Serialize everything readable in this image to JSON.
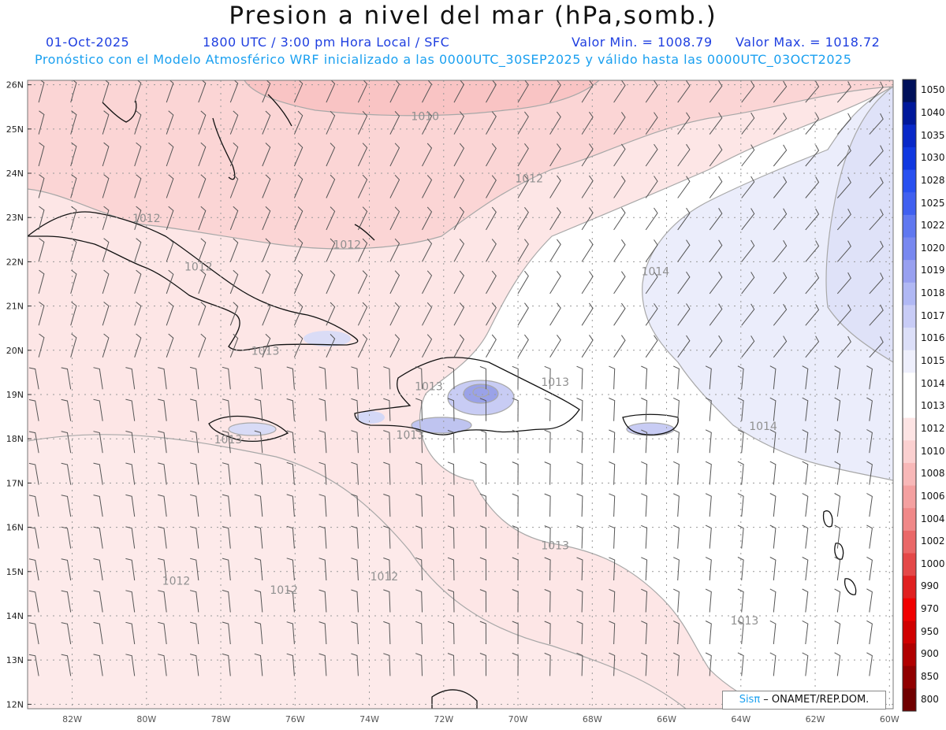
{
  "header": {
    "title": "Presion a nivel del mar (hPa,somb.)",
    "date": "01-Oct-2025",
    "time_info": "1800 UTC / 3:00 pm Hora Local / SFC",
    "valor_min": "Valor Min. = 1008.79",
    "valor_max": "Valor Max. = 1018.72",
    "forecast_info": "Pronóstico con el Modelo Atmosférico WRF inicializado a las 0000UTC_30SEP2025 y válido hasta las  0000UTC_03OCT2025"
  },
  "map": {
    "lat_labels": [
      "26N",
      "25N",
      "24N",
      "23N",
      "22N",
      "21N",
      "20N",
      "19N",
      "18N",
      "17N",
      "16N",
      "15N",
      "14N",
      "13N",
      "12N"
    ],
    "lon_labels": [
      "82W",
      "80W",
      "78W",
      "76W",
      "74W",
      "72W",
      "70W",
      "68W",
      "66W",
      "64W",
      "62W",
      "60W"
    ],
    "contour_labels": [
      {
        "text": "1010",
        "lon": -72.5,
        "lat": 25.2
      },
      {
        "text": "1012",
        "lon": -69.7,
        "lat": 23.8
      },
      {
        "text": "1012",
        "lon": -80.0,
        "lat": 22.9
      },
      {
        "text": "1012",
        "lon": -74.6,
        "lat": 22.3
      },
      {
        "text": "1012",
        "lon": -78.6,
        "lat": 21.8
      },
      {
        "text": "1014",
        "lon": -66.3,
        "lat": 21.7
      },
      {
        "text": "1013",
        "lon": -76.8,
        "lat": 19.9
      },
      {
        "text": "1013",
        "lon": -72.4,
        "lat": 19.1
      },
      {
        "text": "1013",
        "lon": -69.0,
        "lat": 19.2
      },
      {
        "text": "1013",
        "lon": -77.8,
        "lat": 17.9
      },
      {
        "text": "1013",
        "lon": -72.9,
        "lat": 18.0
      },
      {
        "text": "1014",
        "lon": -63.4,
        "lat": 18.2
      },
      {
        "text": "1013",
        "lon": -69.0,
        "lat": 15.5
      },
      {
        "text": "1012",
        "lon": -79.2,
        "lat": 14.7
      },
      {
        "text": "1012",
        "lon": -76.3,
        "lat": 14.5
      },
      {
        "text": "1012",
        "lon": -73.6,
        "lat": 14.8
      },
      {
        "text": "1013",
        "lon": -63.9,
        "lat": 13.8
      }
    ]
  },
  "colorbar": {
    "labels": [
      "1050",
      "1040",
      "1035",
      "1030",
      "1028",
      "1025",
      "1022",
      "1020",
      "1019",
      "1018",
      "1017",
      "1016",
      "1015",
      "1014",
      "1013",
      "1012",
      "1010",
      "1008",
      "1006",
      "1004",
      "1002",
      "1000",
      "990",
      "970",
      "950",
      "900",
      "850",
      "800"
    ],
    "colors": [
      "#00105a",
      "#00189a",
      "#0828c8",
      "#1038e0",
      "#2850f0",
      "#4060f0",
      "#6078f0",
      "#7888f0",
      "#98a0f0",
      "#b0b8f4",
      "#c8ccf6",
      "#dcdff8",
      "#eeeffc",
      "#ffffff",
      "#ffffff",
      "#fde4e4",
      "#fbd0d0",
      "#f8b8b8",
      "#f4a0a0",
      "#f08888",
      "#ea6868",
      "#e44848",
      "#e02020",
      "#f00000",
      "#d00000",
      "#b00000",
      "#900000",
      "#700000"
    ]
  },
  "credit": {
    "brand": "Sisπ",
    "text": " – ONAMET/REP.DOM."
  }
}
